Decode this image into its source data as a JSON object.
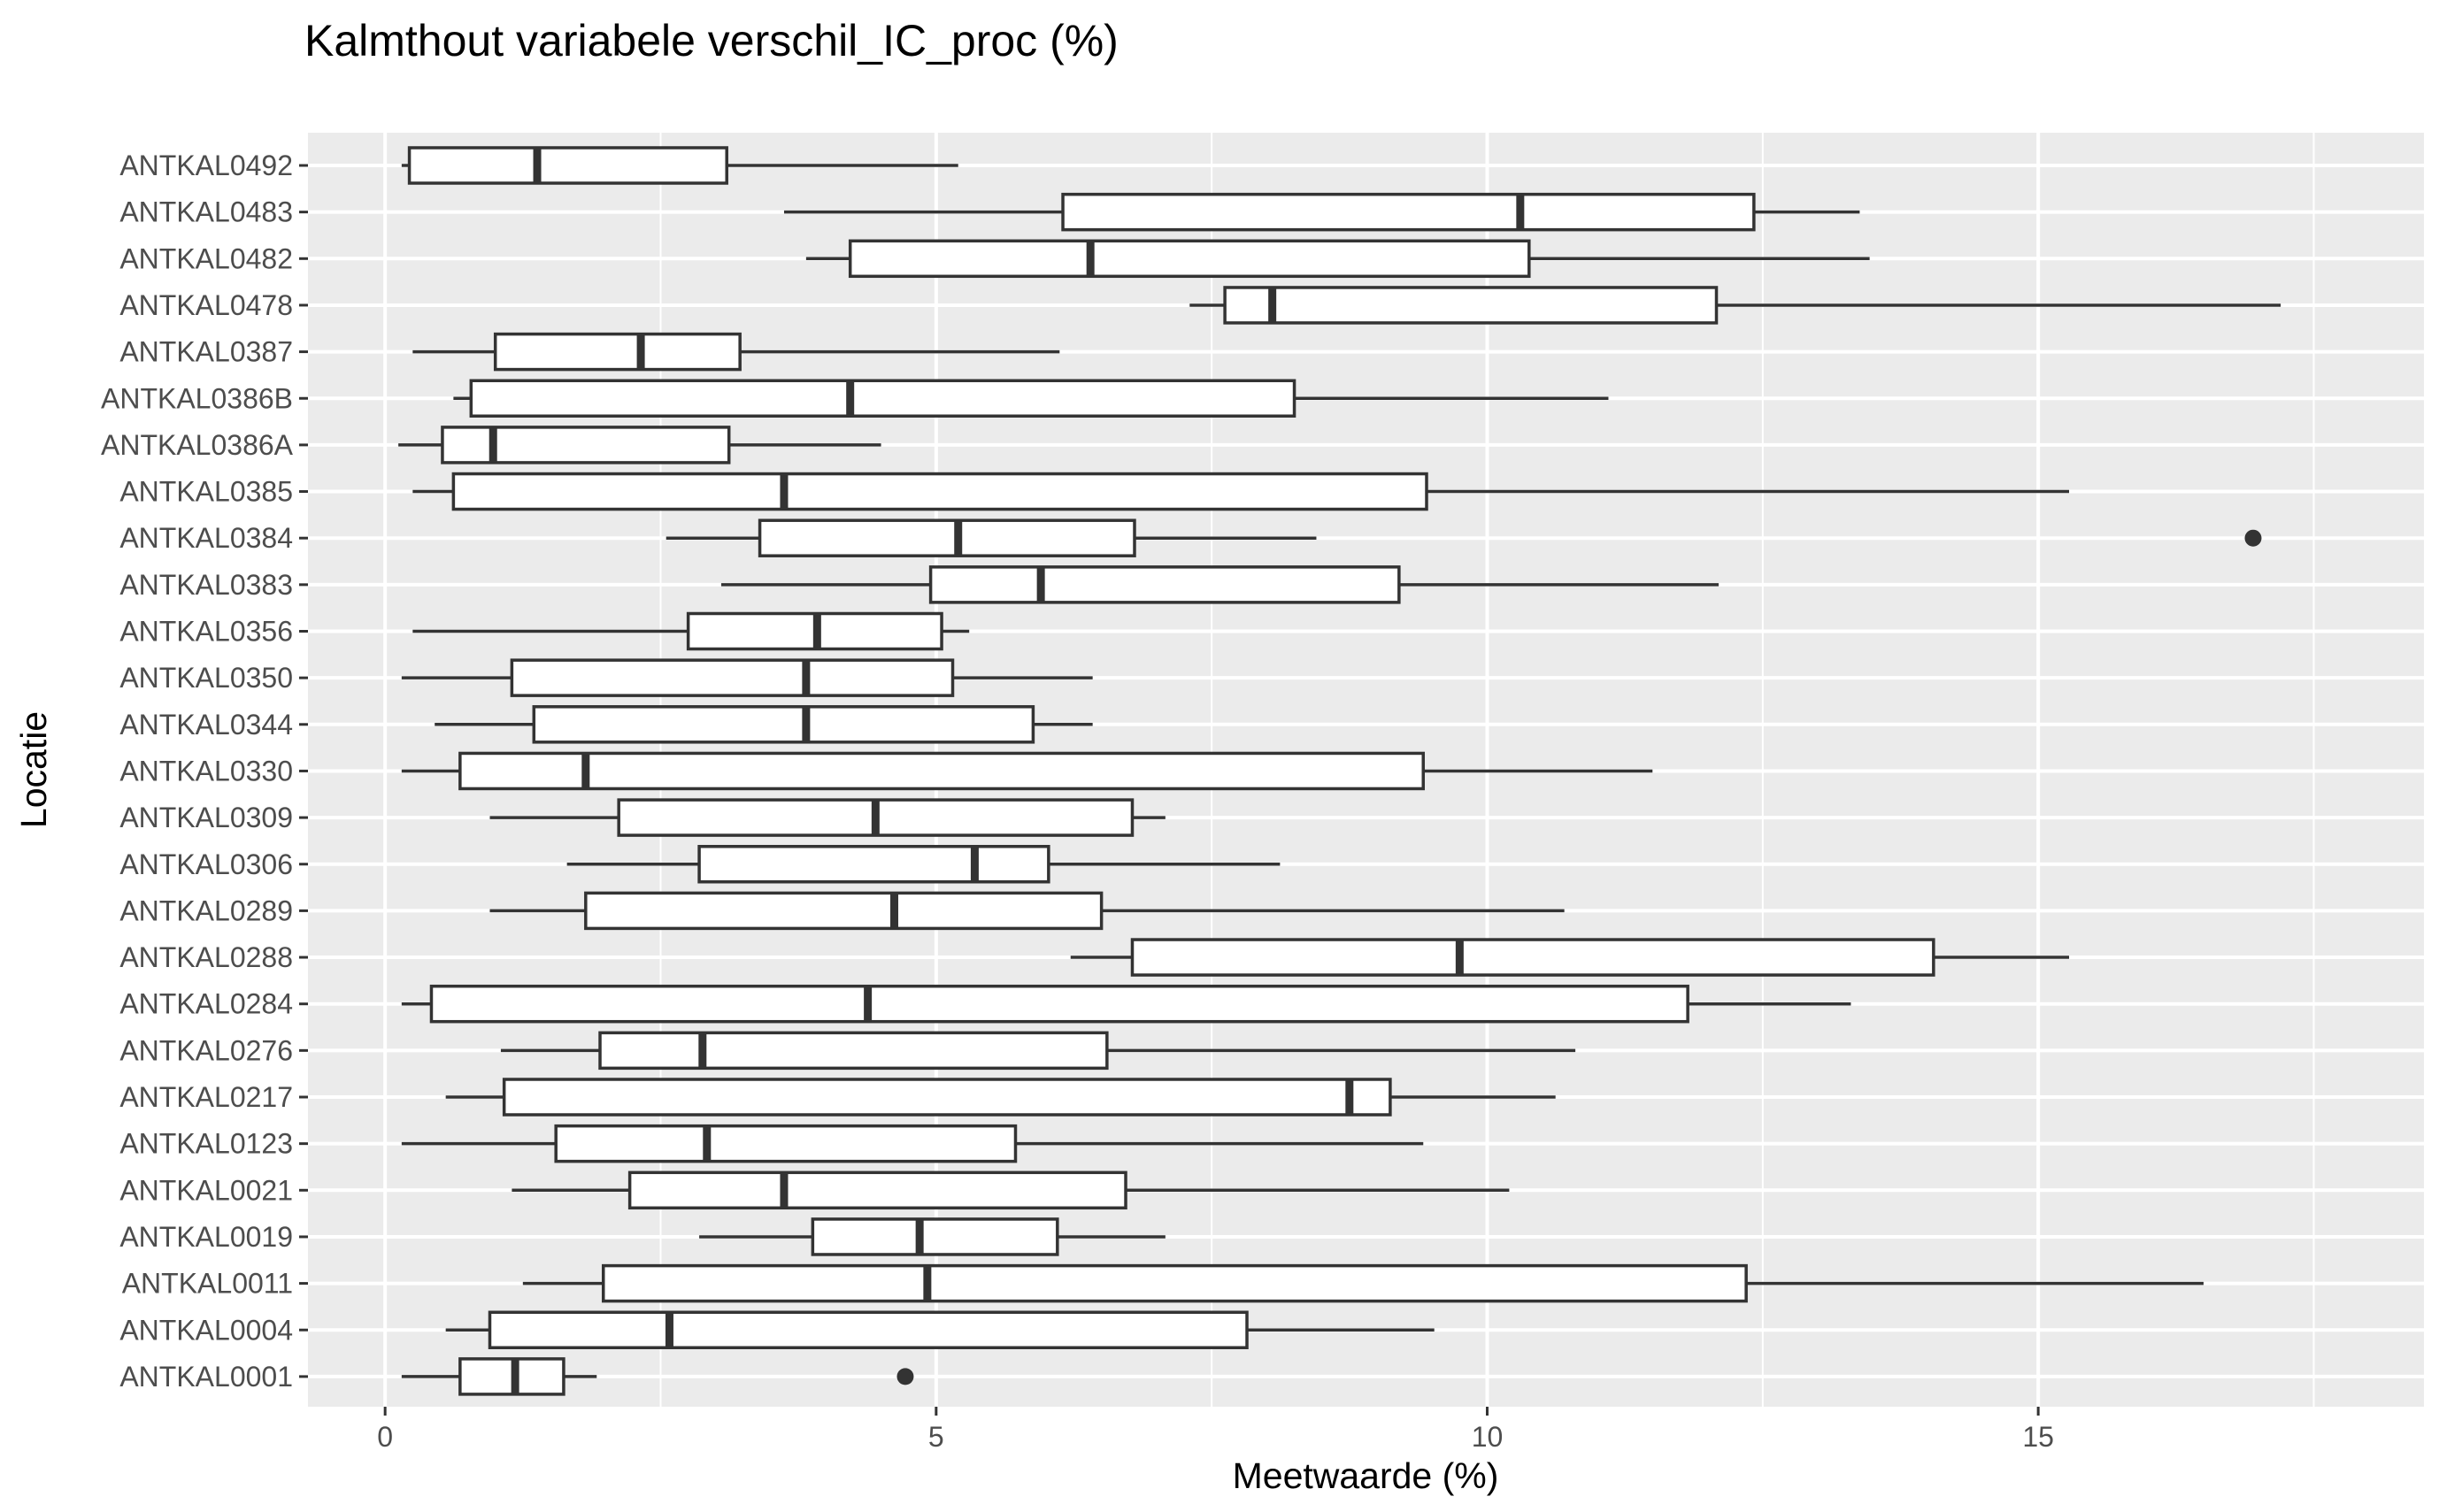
{
  "chart_data": {
    "type": "boxplot",
    "orientation": "horizontal",
    "title": "Kalmthout variabele verschil_IC_proc (%)",
    "xlabel": "Meetwaarde (%)",
    "ylabel": "Locatie",
    "xlim": [
      -0.7,
      18.5
    ],
    "xticks": [
      0,
      5,
      10,
      15
    ],
    "grid": true,
    "legend": "none",
    "colors": {
      "panel": "#ebebeb",
      "grid": "#ffffff",
      "box_fill": "#ffffff",
      "box_stroke": "#333333",
      "text": "#4d4d4d"
    },
    "categories": [
      "ANTKAL0492",
      "ANTKAL0483",
      "ANTKAL0482",
      "ANTKAL0478",
      "ANTKAL0387",
      "ANTKAL0386B",
      "ANTKAL0386A",
      "ANTKAL0385",
      "ANTKAL0384",
      "ANTKAL0383",
      "ANTKAL0356",
      "ANTKAL0350",
      "ANTKAL0344",
      "ANTKAL0330",
      "ANTKAL0309",
      "ANTKAL0306",
      "ANTKAL0289",
      "ANTKAL0288",
      "ANTKAL0284",
      "ANTKAL0276",
      "ANTKAL0217",
      "ANTKAL0123",
      "ANTKAL0021",
      "ANTKAL0019",
      "ANTKAL0011",
      "ANTKAL0004",
      "ANTKAL0001"
    ],
    "boxes": [
      {
        "name": "ANTKAL0492",
        "whisker_low": 0.15,
        "q1": 0.22,
        "median": 1.38,
        "q3": 3.1,
        "whisker_high": 5.2,
        "outliers": []
      },
      {
        "name": "ANTKAL0483",
        "whisker_low": 3.62,
        "q1": 6.15,
        "median": 10.3,
        "q3": 12.42,
        "whisker_high": 13.38,
        "outliers": []
      },
      {
        "name": "ANTKAL0482",
        "whisker_low": 3.82,
        "q1": 4.22,
        "median": 6.4,
        "q3": 10.38,
        "whisker_high": 13.47,
        "outliers": []
      },
      {
        "name": "ANTKAL0478",
        "whisker_low": 7.3,
        "q1": 7.62,
        "median": 8.05,
        "q3": 12.08,
        "whisker_high": 17.2,
        "outliers": []
      },
      {
        "name": "ANTKAL0387",
        "whisker_low": 0.25,
        "q1": 1.0,
        "median": 2.32,
        "q3": 3.22,
        "whisker_high": 6.12,
        "outliers": []
      },
      {
        "name": "ANTKAL0386B",
        "whisker_low": 0.62,
        "q1": 0.78,
        "median": 4.22,
        "q3": 8.25,
        "whisker_high": 11.1,
        "outliers": []
      },
      {
        "name": "ANTKAL0386A",
        "whisker_low": 0.12,
        "q1": 0.52,
        "median": 0.98,
        "q3": 3.12,
        "whisker_high": 4.5,
        "outliers": []
      },
      {
        "name": "ANTKAL0385",
        "whisker_low": 0.25,
        "q1": 0.62,
        "median": 3.62,
        "q3": 9.45,
        "whisker_high": 15.28,
        "outliers": []
      },
      {
        "name": "ANTKAL0384",
        "whisker_low": 2.55,
        "q1": 3.4,
        "median": 5.2,
        "q3": 6.8,
        "whisker_high": 8.45,
        "outliers": [
          16.95
        ]
      },
      {
        "name": "ANTKAL0383",
        "whisker_low": 3.05,
        "q1": 4.95,
        "median": 5.95,
        "q3": 9.2,
        "whisker_high": 12.1,
        "outliers": []
      },
      {
        "name": "ANTKAL0356",
        "whisker_low": 0.25,
        "q1": 2.75,
        "median": 3.92,
        "q3": 5.05,
        "whisker_high": 5.3,
        "outliers": []
      },
      {
        "name": "ANTKAL0350",
        "whisker_low": 0.15,
        "q1": 1.15,
        "median": 3.82,
        "q3": 5.15,
        "whisker_high": 6.42,
        "outliers": []
      },
      {
        "name": "ANTKAL0344",
        "whisker_low": 0.45,
        "q1": 1.35,
        "median": 3.82,
        "q3": 5.88,
        "whisker_high": 6.42,
        "outliers": []
      },
      {
        "name": "ANTKAL0330",
        "whisker_low": 0.15,
        "q1": 0.68,
        "median": 1.82,
        "q3": 9.42,
        "whisker_high": 11.5,
        "outliers": []
      },
      {
        "name": "ANTKAL0309",
        "whisker_low": 0.95,
        "q1": 2.12,
        "median": 4.45,
        "q3": 6.78,
        "whisker_high": 7.08,
        "outliers": []
      },
      {
        "name": "ANTKAL0306",
        "whisker_low": 1.65,
        "q1": 2.85,
        "median": 5.35,
        "q3": 6.02,
        "whisker_high": 8.12,
        "outliers": []
      },
      {
        "name": "ANTKAL0289",
        "whisker_low": 0.95,
        "q1": 1.82,
        "median": 4.62,
        "q3": 6.5,
        "whisker_high": 10.7,
        "outliers": []
      },
      {
        "name": "ANTKAL0288",
        "whisker_low": 6.22,
        "q1": 6.78,
        "median": 9.75,
        "q3": 14.05,
        "whisker_high": 15.28,
        "outliers": []
      },
      {
        "name": "ANTKAL0284",
        "whisker_low": 0.15,
        "q1": 0.42,
        "median": 4.38,
        "q3": 11.82,
        "whisker_high": 13.3,
        "outliers": []
      },
      {
        "name": "ANTKAL0276",
        "whisker_low": 1.05,
        "q1": 1.95,
        "median": 2.88,
        "q3": 6.55,
        "whisker_high": 10.8,
        "outliers": []
      },
      {
        "name": "ANTKAL0217",
        "whisker_low": 0.55,
        "q1": 1.08,
        "median": 8.75,
        "q3": 9.12,
        "whisker_high": 10.62,
        "outliers": []
      },
      {
        "name": "ANTKAL0123",
        "whisker_low": 0.15,
        "q1": 1.55,
        "median": 2.92,
        "q3": 5.72,
        "whisker_high": 9.42,
        "outliers": []
      },
      {
        "name": "ANTKAL0021",
        "whisker_low": 1.15,
        "q1": 2.22,
        "median": 3.62,
        "q3": 6.72,
        "whisker_high": 10.2,
        "outliers": []
      },
      {
        "name": "ANTKAL0019",
        "whisker_low": 2.85,
        "q1": 3.88,
        "median": 4.85,
        "q3": 6.1,
        "whisker_high": 7.08,
        "outliers": []
      },
      {
        "name": "ANTKAL0011",
        "whisker_low": 1.25,
        "q1": 1.98,
        "median": 4.92,
        "q3": 12.35,
        "whisker_high": 16.5,
        "outliers": []
      },
      {
        "name": "ANTKAL0004",
        "whisker_low": 0.55,
        "q1": 0.95,
        "median": 2.58,
        "q3": 7.82,
        "whisker_high": 9.52,
        "outliers": []
      },
      {
        "name": "ANTKAL0001",
        "whisker_low": 0.15,
        "q1": 0.68,
        "median": 1.18,
        "q3": 1.62,
        "whisker_high": 1.92,
        "outliers": [
          4.72
        ]
      }
    ]
  }
}
